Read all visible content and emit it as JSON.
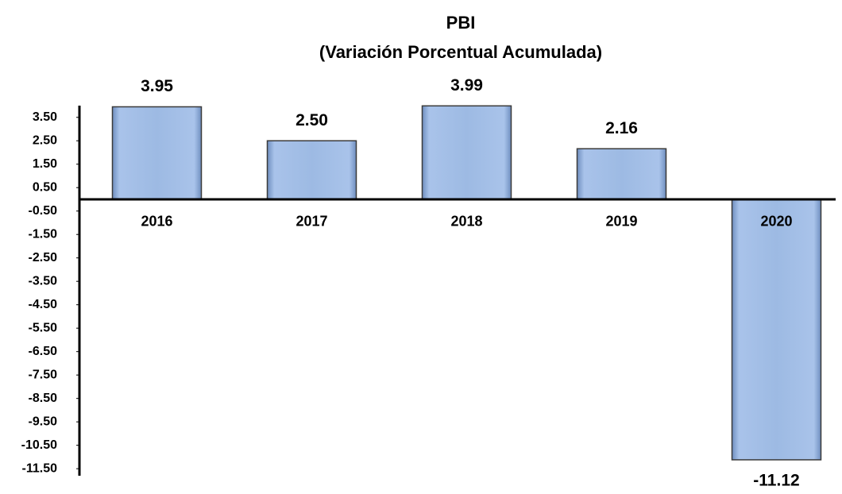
{
  "chart_data": {
    "type": "bar",
    "title": "PBI",
    "subtitle": "(Variación Porcentual Acumulada)",
    "categories": [
      "2016",
      "2017",
      "2018",
      "2019",
      "2020"
    ],
    "values": [
      3.95,
      2.5,
      3.99,
      2.16,
      -11.12
    ],
    "value_labels": [
      "3.95",
      "2.50",
      "3.99",
      "2.16",
      "-11.12"
    ],
    "color": "#9dbae3",
    "ylim": [
      -11.8,
      4.0
    ],
    "yticks": [
      {
        "value": 3.5,
        "label": "3.50"
      },
      {
        "value": 2.5,
        "label": "2.50"
      },
      {
        "value": 1.5,
        "label": "1.50"
      },
      {
        "value": 0.5,
        "label": "0.50"
      },
      {
        "value": -0.5,
        "label": "-0.50"
      },
      {
        "value": -1.5,
        "label": "-1.50"
      },
      {
        "value": -2.5,
        "label": "-2.50"
      },
      {
        "value": -3.5,
        "label": "-3.50"
      },
      {
        "value": -4.5,
        "label": "-4.50"
      },
      {
        "value": -5.5,
        "label": "-5.50"
      },
      {
        "value": -6.5,
        "label": "-6.50"
      },
      {
        "value": -7.5,
        "label": "-7.50"
      },
      {
        "value": -8.5,
        "label": "-8.50"
      },
      {
        "value": -9.5,
        "label": "-9.50"
      },
      {
        "value": -10.5,
        "label": "-10.50"
      },
      {
        "value": -11.5,
        "label": "-11.50"
      }
    ],
    "grid": false
  }
}
